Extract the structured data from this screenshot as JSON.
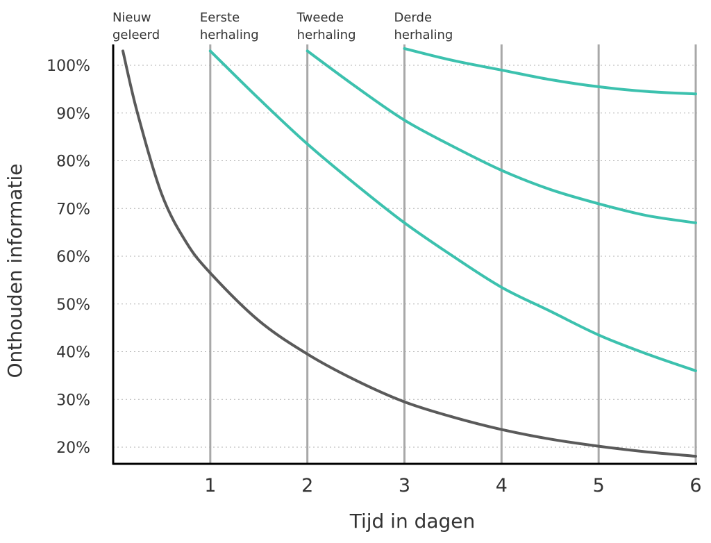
{
  "chart_data": {
    "type": "line",
    "xlabel": "Tijd in dagen",
    "ylabel": "Onthouden informatie",
    "xlim": [
      0,
      6
    ],
    "ylim": [
      16,
      104
    ],
    "x_ticks": [
      "1",
      "2",
      "3",
      "4",
      "5",
      "6"
    ],
    "y_ticks": [
      "20%",
      "30%",
      "40%",
      "50%",
      "60%",
      "70%",
      "80%",
      "90%",
      "100%"
    ],
    "grid": "dotted-horizontal",
    "colors": {
      "forgetting": "#5a5a5a",
      "review": "#3cc1ae"
    },
    "annotations": [
      {
        "x": 0.1,
        "lines": [
          "Nieuw",
          "geleerd"
        ]
      },
      {
        "x": 1,
        "lines": [
          "Eerste",
          "herhaling"
        ]
      },
      {
        "x": 2,
        "lines": [
          "Tweede",
          "herhaling"
        ]
      },
      {
        "x": 3,
        "lines": [
          "Derde",
          "herhaling"
        ]
      }
    ],
    "series": [
      {
        "color_key": "forgetting",
        "x": [
          0.1,
          0.25,
          0.5,
          0.75,
          1,
          1.5,
          2,
          2.5,
          3,
          3.5,
          4,
          4.5,
          5,
          5.5,
          6
        ],
        "y": [
          103,
          90,
          73,
          63,
          56.5,
          46.5,
          39.5,
          34,
          29.5,
          26.3,
          23.7,
          21.7,
          20.2,
          19,
          18.1
        ]
      },
      {
        "color_key": "review",
        "x": [
          1,
          1.5,
          2,
          2.5,
          3,
          3.5,
          4,
          4.5,
          5,
          5.5,
          6
        ],
        "y": [
          103,
          93,
          83.5,
          75,
          67,
          60,
          53.5,
          48.5,
          43.5,
          39.5,
          36
        ]
      },
      {
        "color_key": "review",
        "x": [
          2,
          2.5,
          3,
          3.5,
          4,
          4.5,
          5,
          5.5,
          6
        ],
        "y": [
          103,
          95.5,
          88.5,
          83,
          78,
          74,
          71,
          68.5,
          67
        ]
      },
      {
        "color_key": "review",
        "x": [
          3,
          3.5,
          4,
          4.5,
          5,
          5.5,
          6
        ],
        "y": [
          103.5,
          101,
          99,
          97,
          95.5,
          94.5,
          94
        ]
      }
    ]
  }
}
